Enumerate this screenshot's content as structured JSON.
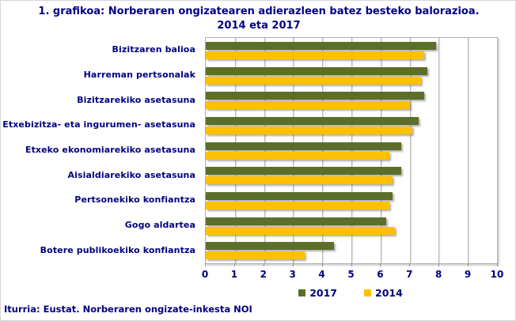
{
  "title": "1. grafikoa: Norberaren ongizatearen adierazleen batez besteko balorazioa. 2014 eta 2017",
  "footer": "Iturria: Eustat. Norberaren ongizate-inkesta NOI",
  "colors": {
    "text_navy": "#000080",
    "gridline": "#b9b9b9",
    "series_2017": "#5b6e2a",
    "series_2014": "#ffc000",
    "background": "#ffffff"
  },
  "chart_data": {
    "type": "bar",
    "orientation": "horizontal",
    "title": "1. grafikoa: Norberaren ongizatearen adierazleen batez besteko balorazioa. 2014 eta 2017",
    "categories": [
      "Bizitzaren balioa",
      "Harreman pertsonalak",
      "Bizitzarekiko asetasuna",
      "Etxebizitza- eta ingurumen- asetasuna",
      "Etxeko ekonomiarekiko asetasuna",
      "Aisialdiarekiko asetasuna",
      "Pertsonekiko konfiantza",
      "Gogo aldartea",
      "Botere publikoekiko konfiantza"
    ],
    "series": [
      {
        "name": "2017",
        "color": "#5b6e2a",
        "values": [
          7.9,
          7.6,
          7.5,
          7.3,
          6.7,
          6.7,
          6.4,
          6.2,
          4.4
        ]
      },
      {
        "name": "2014",
        "color": "#ffc000",
        "values": [
          7.5,
          7.4,
          7.0,
          7.1,
          6.3,
          6.4,
          6.3,
          6.5,
          3.4
        ]
      }
    ],
    "xlim": [
      0,
      10
    ],
    "xticks": [
      0,
      1,
      2,
      3,
      4,
      5,
      6,
      7,
      8,
      9,
      10
    ],
    "grid": "vertical-major",
    "legend_position": "bottom",
    "source": "Iturria: Eustat. Norberaren ongizate-inkesta NOI"
  }
}
